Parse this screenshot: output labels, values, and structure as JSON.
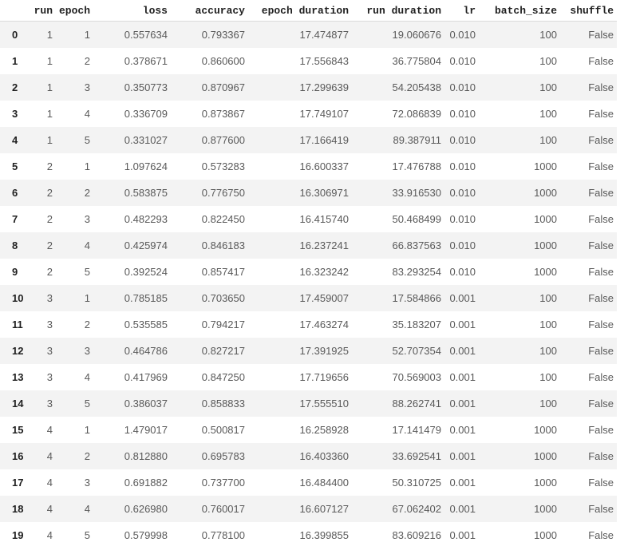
{
  "table": {
    "index_header": "",
    "columns": [
      "run",
      "epoch",
      "loss",
      "accuracy",
      "epoch duration",
      "run duration",
      "lr",
      "batch_size",
      "shuffle"
    ],
    "rows": [
      {
        "index": "0",
        "cells": [
          "1",
          "1",
          "0.557634",
          "0.793367",
          "17.474877",
          "19.060676",
          "0.010",
          "100",
          "False"
        ]
      },
      {
        "index": "1",
        "cells": [
          "1",
          "2",
          "0.378671",
          "0.860600",
          "17.556843",
          "36.775804",
          "0.010",
          "100",
          "False"
        ]
      },
      {
        "index": "2",
        "cells": [
          "1",
          "3",
          "0.350773",
          "0.870967",
          "17.299639",
          "54.205438",
          "0.010",
          "100",
          "False"
        ]
      },
      {
        "index": "3",
        "cells": [
          "1",
          "4",
          "0.336709",
          "0.873867",
          "17.749107",
          "72.086839",
          "0.010",
          "100",
          "False"
        ]
      },
      {
        "index": "4",
        "cells": [
          "1",
          "5",
          "0.331027",
          "0.877600",
          "17.166419",
          "89.387911",
          "0.010",
          "100",
          "False"
        ]
      },
      {
        "index": "5",
        "cells": [
          "2",
          "1",
          "1.097624",
          "0.573283",
          "16.600337",
          "17.476788",
          "0.010",
          "1000",
          "False"
        ]
      },
      {
        "index": "6",
        "cells": [
          "2",
          "2",
          "0.583875",
          "0.776750",
          "16.306971",
          "33.916530",
          "0.010",
          "1000",
          "False"
        ]
      },
      {
        "index": "7",
        "cells": [
          "2",
          "3",
          "0.482293",
          "0.822450",
          "16.415740",
          "50.468499",
          "0.010",
          "1000",
          "False"
        ]
      },
      {
        "index": "8",
        "cells": [
          "2",
          "4",
          "0.425974",
          "0.846183",
          "16.237241",
          "66.837563",
          "0.010",
          "1000",
          "False"
        ]
      },
      {
        "index": "9",
        "cells": [
          "2",
          "5",
          "0.392524",
          "0.857417",
          "16.323242",
          "83.293254",
          "0.010",
          "1000",
          "False"
        ]
      },
      {
        "index": "10",
        "cells": [
          "3",
          "1",
          "0.785185",
          "0.703650",
          "17.459007",
          "17.584866",
          "0.001",
          "100",
          "False"
        ]
      },
      {
        "index": "11",
        "cells": [
          "3",
          "2",
          "0.535585",
          "0.794217",
          "17.463274",
          "35.183207",
          "0.001",
          "100",
          "False"
        ]
      },
      {
        "index": "12",
        "cells": [
          "3",
          "3",
          "0.464786",
          "0.827217",
          "17.391925",
          "52.707354",
          "0.001",
          "100",
          "False"
        ]
      },
      {
        "index": "13",
        "cells": [
          "3",
          "4",
          "0.417969",
          "0.847250",
          "17.719656",
          "70.569003",
          "0.001",
          "100",
          "False"
        ]
      },
      {
        "index": "14",
        "cells": [
          "3",
          "5",
          "0.386037",
          "0.858833",
          "17.555510",
          "88.262741",
          "0.001",
          "100",
          "False"
        ]
      },
      {
        "index": "15",
        "cells": [
          "4",
          "1",
          "1.479017",
          "0.500817",
          "16.258928",
          "17.141479",
          "0.001",
          "1000",
          "False"
        ]
      },
      {
        "index": "16",
        "cells": [
          "4",
          "2",
          "0.812880",
          "0.695783",
          "16.403360",
          "33.692541",
          "0.001",
          "1000",
          "False"
        ]
      },
      {
        "index": "17",
        "cells": [
          "4",
          "3",
          "0.691882",
          "0.737700",
          "16.484400",
          "50.310725",
          "0.001",
          "1000",
          "False"
        ]
      },
      {
        "index": "18",
        "cells": [
          "4",
          "4",
          "0.626980",
          "0.760017",
          "16.607127",
          "67.062402",
          "0.001",
          "1000",
          "False"
        ]
      },
      {
        "index": "19",
        "cells": [
          "4",
          "5",
          "0.579998",
          "0.778100",
          "16.399855",
          "83.609216",
          "0.001",
          "1000",
          "False"
        ]
      }
    ]
  },
  "colors": {
    "background": "#ffffff",
    "stripe": "#f3f3f3",
    "header_border": "#dadada",
    "body_text": "#595959",
    "strong_text": "#1f1f1f"
  }
}
